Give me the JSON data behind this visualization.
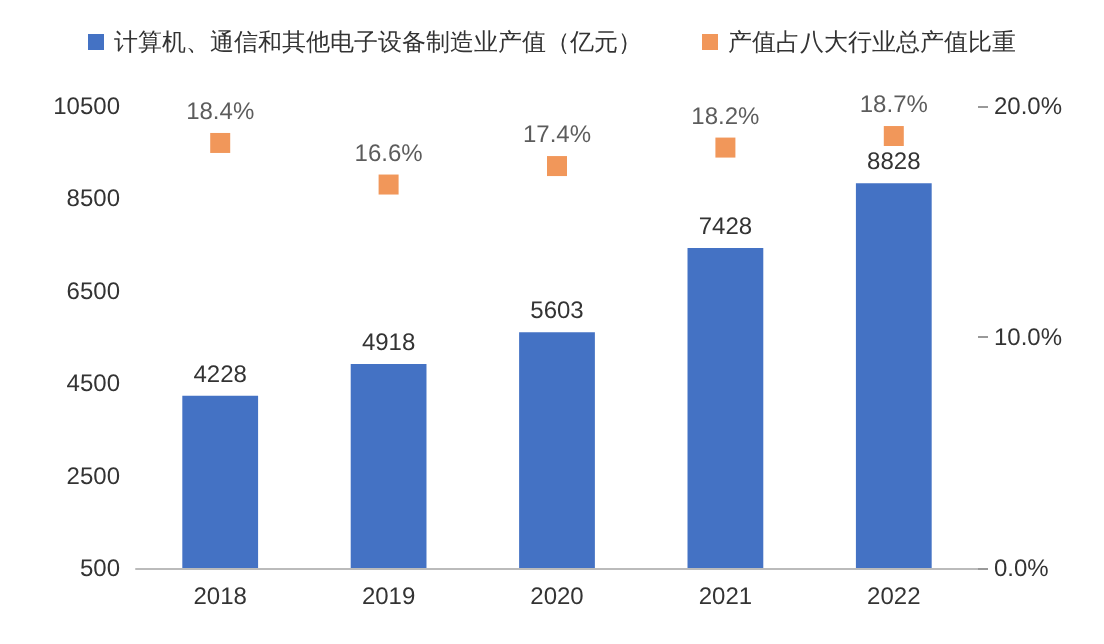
{
  "chart_data": {
    "type": "bar",
    "categories": [
      "2018",
      "2019",
      "2020",
      "2021",
      "2022"
    ],
    "series": [
      {
        "name": "计算机、通信和其他电子设备制造业产值（亿元）",
        "color": "#4472c4",
        "values": [
          4228,
          4918,
          5603,
          7428,
          8828
        ],
        "value_labels": [
          "4228",
          "4918",
          "5603",
          "7428",
          "8828"
        ]
      },
      {
        "name": "产值占八大行业总产值比重",
        "type": "scatter",
        "axis": "y2",
        "color": "#ed7d31",
        "marker": "square",
        "values": [
          18.4,
          16.6,
          17.4,
          18.2,
          18.7
        ],
        "value_labels": [
          "18.4%",
          "16.6%",
          "17.4%",
          "18.2%",
          "18.7%"
        ]
      }
    ],
    "ylim": [
      500,
      10500
    ],
    "yticks": [
      500,
      2500,
      4500,
      6500,
      8500,
      10500
    ],
    "y2lim": [
      0,
      20
    ],
    "y2ticks": [
      {
        "value": 0,
        "label": "0.0%"
      },
      {
        "value": 10,
        "label": "10.0%"
      },
      {
        "value": 20,
        "label": "20.0%"
      }
    ],
    "legend": "top",
    "grid": false
  }
}
